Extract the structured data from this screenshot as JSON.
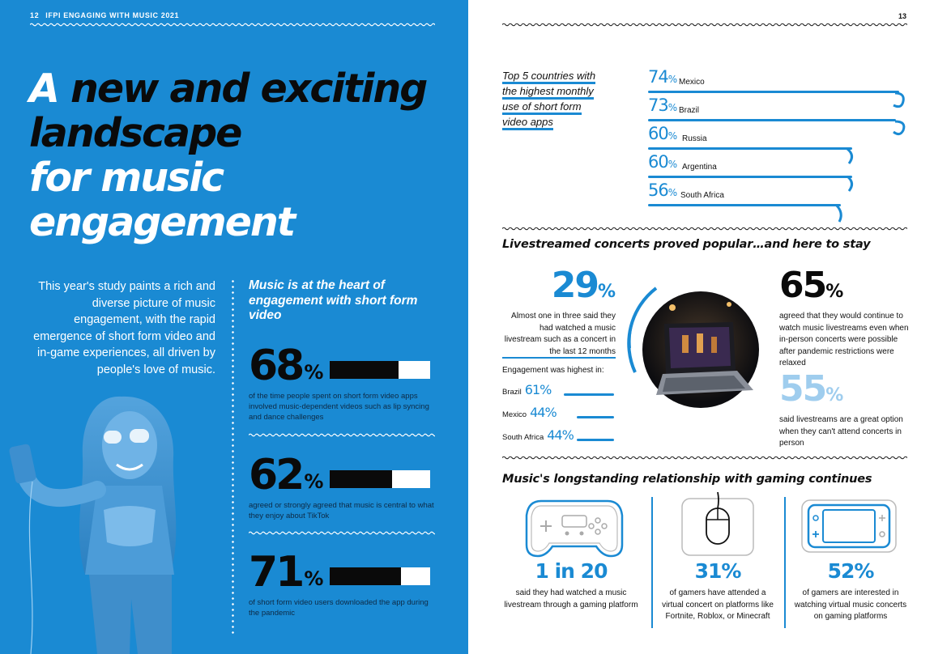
{
  "left_page": {
    "page_number": "12",
    "running_header": "IFPI ENGAGING WITH MUSIC 2021",
    "headline": {
      "line1_white": "A",
      "line1_dark": "new and exciting",
      "line2_dark": "landscape",
      "line3_white": "for music",
      "line4_white": "engagement"
    },
    "intro_text": "This year's study paints a rich and diverse picture of music engagement, with the rapid emergence of short form video and in-game experiences, all driven by people's love of music.",
    "column_title": "Music is at the heart of engagement with short form video",
    "stats": [
      {
        "value": "68",
        "unit": "%",
        "fraction": 0.68,
        "description": "of the time people spent on short form video apps involved music-dependent videos such as lip syncing and dance challenges"
      },
      {
        "value": "62",
        "unit": "%",
        "fraction": 0.62,
        "description": "agreed or strongly agreed that music is central to what they enjoy about TikTok"
      },
      {
        "value": "71",
        "unit": "%",
        "fraction": 0.71,
        "description": "of short form video users downloaded the app during the pandemic"
      }
    ]
  },
  "right_page": {
    "page_number": "13",
    "top5_title": [
      "Top 5 countries with",
      "the highest monthly",
      "use of short form",
      "video apps"
    ],
    "countries": [
      {
        "value": "74",
        "unit": "%",
        "name": "Mexico"
      },
      {
        "value": "73",
        "unit": "%",
        "name": "Brazil"
      },
      {
        "value": "60",
        "unit": "%",
        "name": "Russia"
      },
      {
        "value": "60",
        "unit": "%",
        "name": "Argentina"
      },
      {
        "value": "56",
        "unit": "%",
        "name": "South Africa"
      }
    ],
    "livestream": {
      "title": "Livestreamed concerts proved popular…and here to stay",
      "stat1": {
        "value": "29",
        "unit": "%",
        "text": "Almost one in three said they had watched a music livestream such as a concert in the last 12 months"
      },
      "engagement_label": "Engagement was highest in:",
      "engagement": [
        {
          "country": "Brazil",
          "value": "61%"
        },
        {
          "country": "Mexico",
          "value": "44%"
        },
        {
          "country": "South Africa",
          "value": "44%"
        }
      ],
      "stat2": {
        "value": "65",
        "unit": "%",
        "text": "agreed that they would continue to watch music livestreams even when in-person concerts were possible after pandemic restrictions were relaxed"
      },
      "stat3": {
        "value": "55",
        "unit": "%",
        "text": "said livestreams are a great option when they can't attend concerts in person"
      }
    },
    "gaming": {
      "title": "Music's longstanding relationship with gaming continues",
      "stats": [
        {
          "icon": "gamepad-icon",
          "value": "1 in 20",
          "text": "said they had watched a music livestream through a gaming platform"
        },
        {
          "icon": "mouse-icon",
          "value": "31%",
          "text": "of gamers have attended a virtual concert on platforms like Fortnite, Roblox, or Minecraft"
        },
        {
          "icon": "handheld-console-icon",
          "value": "52%",
          "text": "of gamers are interested in watching virtual music concerts on gaming platforms"
        }
      ]
    },
    "colors": {
      "accent_blue": "#1a8ad3",
      "light_blue": "#9fcdee",
      "dark": "#0a0a0a"
    }
  }
}
